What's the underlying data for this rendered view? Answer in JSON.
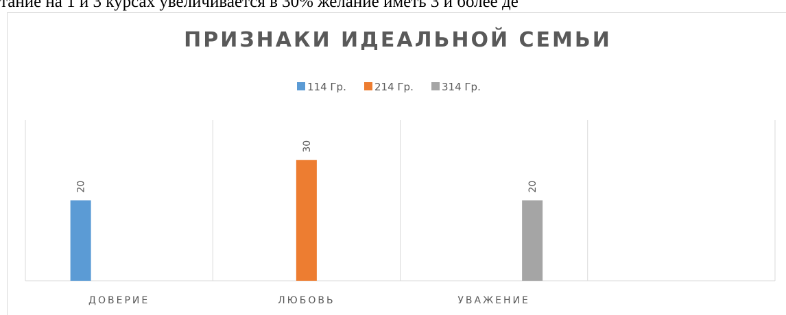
{
  "page_text": "тание на 1 и 3 курсах увеличивается в 30% желание иметь 3 и более де",
  "chart_data": {
    "type": "bar",
    "title": "ПРИЗНАКИ ИДЕАЛЬНОЙ СЕМЬИ",
    "categories": [
      "ДОВЕРИЕ",
      "ЛЮБОВЬ",
      "УВАЖЕНИЕ",
      null
    ],
    "series": [
      {
        "name": "114 Гр.",
        "color": "#5b9bd5",
        "values": [
          20,
          null,
          null,
          null
        ]
      },
      {
        "name": "214 Гр.",
        "color": "#ed7d31",
        "values": [
          null,
          30,
          null,
          null
        ]
      },
      {
        "name": "314 Гр.",
        "color": "#a5a5a5",
        "values": [
          null,
          null,
          20,
          null
        ]
      }
    ],
    "ylim": [
      0,
      40
    ],
    "legend": "top"
  }
}
